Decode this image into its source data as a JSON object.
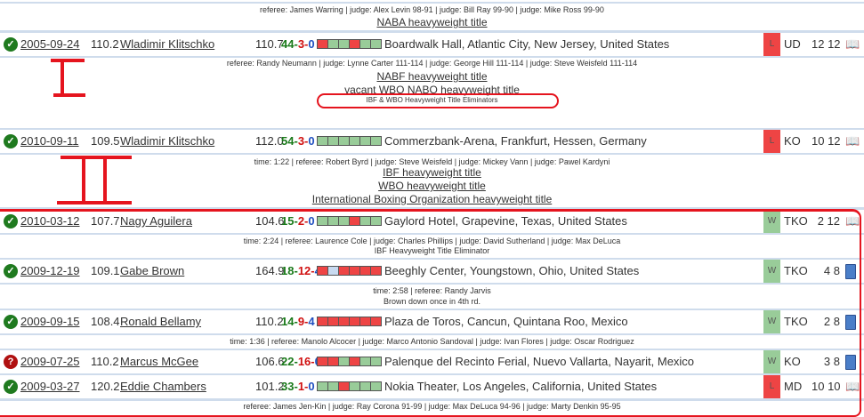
{
  "colors": {
    "win": "#99cc99",
    "loss": "#ee4444",
    "draw": "#c8daf0",
    "check": "#1f7a1f",
    "question": "#b01010"
  },
  "top": {
    "details": "referee: James Warring | judge: Alex Levin 98-91 | judge: Bill Ray 99-90 | judge: Mike Ross 99-90",
    "titles": [
      "NABA heavyweight title"
    ]
  },
  "fights": [
    {
      "status": "check",
      "date": "2005-09-24",
      "weight": "110.2",
      "opponent": "Wladimir Klitschko",
      "opp_weight": "110.7",
      "rec": [
        "44",
        "3",
        "0"
      ],
      "form": [
        "L",
        "W",
        "W",
        "L",
        "W",
        "W"
      ],
      "location": "Boardwalk Hall, Atlantic City, New Jersey, United States",
      "result": "L",
      "method": "UD",
      "rounds": "12 12",
      "doc": "book-icon",
      "details": "referee: Randy Neumann | judge: Lynne Carter 111-114 | judge: George Hill 111-114 | judge: Steve Weisfeld 111-114",
      "titles": [
        "NABF heavyweight title",
        "vacant WBO NABO heavyweight title"
      ],
      "note": "IBF & WBO Heavyweight Title Eliminators"
    },
    {
      "status": "check",
      "date": "2010-09-11",
      "weight": "109.5",
      "opponent": "Wladimir Klitschko",
      "opp_weight": "112.0",
      "rec": [
        "54",
        "3",
        "0"
      ],
      "form": [
        "W",
        "W",
        "W",
        "W",
        "W",
        "W"
      ],
      "location": "Commerzbank-Arena, Frankfurt, Hessen, Germany",
      "result": "L",
      "method": "KO",
      "rounds": "10 12",
      "doc": "book-icon",
      "details": "time: 1:22 | referee: Robert Byrd | judge: Steve Weisfeld | judge: Mickey Vann | judge: Pawel Kardyni",
      "titles": [
        "IBF heavyweight title",
        "WBO heavyweight title",
        "International Boxing Organization heavyweight title"
      ]
    },
    {
      "status": "check",
      "date": "2010-03-12",
      "weight": "107.7",
      "opponent": "Nagy Aguilera",
      "opp_weight": "104.6",
      "rec": [
        "15",
        "2",
        "0"
      ],
      "form": [
        "W",
        "W",
        "W",
        "L",
        "W",
        "W"
      ],
      "location": "Gaylord Hotel, Grapevine, Texas, United States",
      "result": "W",
      "method": "TKO",
      "rounds": "2 12",
      "doc": "book-icon",
      "details": "time: 2:24 | referee: Laurence Cole | judge: Charles Phillips | judge: David Sutherland | judge: Max DeLuca",
      "note": "IBF Heavyweight Title Eliminator"
    },
    {
      "status": "check",
      "date": "2009-12-19",
      "weight": "109.1",
      "opponent": "Gabe Brown",
      "opp_weight": "164.9",
      "rec": [
        "18",
        "12",
        "4"
      ],
      "form": [
        "L",
        "D",
        "L",
        "L",
        "L",
        "L"
      ],
      "location": "Beeghly Center, Youngstown, Ohio, United States",
      "result": "W",
      "method": "TKO",
      "rounds": "4 8",
      "doc": "document-icon",
      "details": "time: 2:58 | referee: Randy Jarvis",
      "note": "Brown down once in 4th rd."
    },
    {
      "status": "check",
      "date": "2009-09-15",
      "weight": "108.4",
      "opponent": "Ronald Bellamy",
      "opp_weight": "110.2",
      "rec": [
        "14",
        "9",
        "4"
      ],
      "form": [
        "L",
        "L",
        "L",
        "L",
        "L",
        "L"
      ],
      "location": "Plaza de Toros, Cancun, Quintana Roo, Mexico",
      "result": "W",
      "method": "TKO",
      "rounds": "2 8",
      "doc": "document-icon",
      "details": "time: 1:36 | referee: Manolo Alcocer | judge: Marco Antonio Sandoval | judge: Ivan Flores | judge: Oscar Rodriguez"
    },
    {
      "status": "question",
      "date": "2009-07-25",
      "weight": "110.2",
      "opponent": "Marcus McGee",
      "opp_weight": "106.6",
      "rec": [
        "22",
        "16",
        "0"
      ],
      "form": [
        "L",
        "L",
        "W",
        "L",
        "W",
        "W"
      ],
      "location": "Palenque del Recinto Ferial, Nuevo Vallarta, Nayarit, Mexico",
      "result": "W",
      "method": "KO",
      "rounds": "3 8",
      "doc": "document-icon"
    },
    {
      "status": "check",
      "date": "2009-03-27",
      "weight": "120.2",
      "opponent": "Eddie Chambers",
      "opp_weight": "101.2",
      "rec": [
        "33",
        "1",
        "0"
      ],
      "form": [
        "W",
        "W",
        "L",
        "W",
        "W",
        "W"
      ],
      "location": "Nokia Theater, Los Angeles, California, United States",
      "result": "L",
      "method": "MD",
      "rounds": "10 10",
      "doc": "book-icon",
      "details": "referee: James Jen-Kin | judge: Ray Corona 91-99 | judge: Max DeLuca 94-96 | judge: Marty Denkin 95-95"
    }
  ],
  "annotations": {
    "label_1": "I",
    "label_2": "II"
  }
}
